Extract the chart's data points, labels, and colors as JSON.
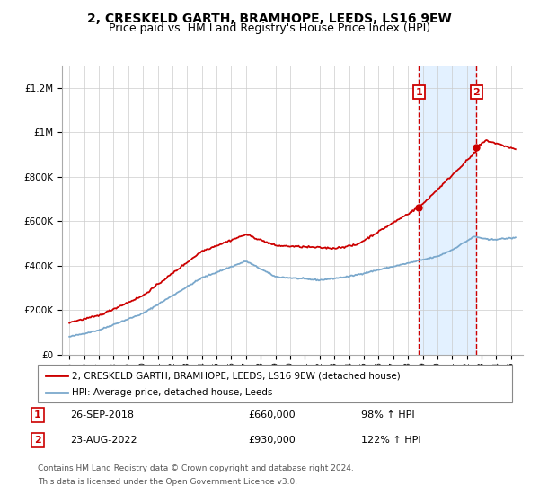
{
  "title": "2, CRESKELD GARTH, BRAMHOPE, LEEDS, LS16 9EW",
  "subtitle": "Price paid vs. HM Land Registry's House Price Index (HPI)",
  "ylim": [
    0,
    1300000
  ],
  "yticks": [
    0,
    200000,
    400000,
    600000,
    800000,
    1000000,
    1200000
  ],
  "ytick_labels": [
    "£0",
    "£200K",
    "£400K",
    "£600K",
    "£800K",
    "£1M",
    "£1.2M"
  ],
  "red_line_color": "#cc0000",
  "blue_line_color": "#7aa8cc",
  "annotation_box_color": "#cc0000",
  "shade_color": "#ddeeff",
  "transaction1": {
    "date_num": 2018.74,
    "price": 660000,
    "label": "1",
    "date_str": "26-SEP-2018",
    "pct": "98%"
  },
  "transaction2": {
    "date_num": 2022.65,
    "price": 930000,
    "label": "2",
    "date_str": "23-AUG-2022",
    "pct": "122%"
  },
  "legend_entry1": "2, CRESKELD GARTH, BRAMHOPE, LEEDS, LS16 9EW (detached house)",
  "legend_entry2": "HPI: Average price, detached house, Leeds",
  "footnote1": "Contains HM Land Registry data © Crown copyright and database right 2024.",
  "footnote2": "This data is licensed under the Open Government Licence v3.0.",
  "title_fontsize": 10,
  "subtitle_fontsize": 9,
  "tick_fontsize": 7.5
}
